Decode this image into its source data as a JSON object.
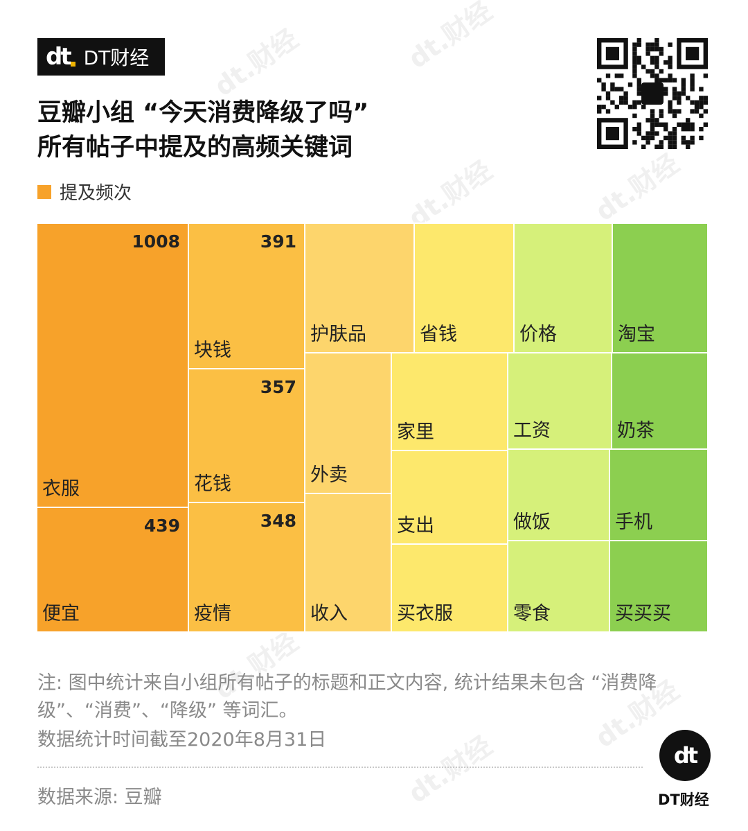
{
  "header": {
    "logo_mark": "dt",
    "brand": "DT财经",
    "title_line1": "豆瓣小组 “今天消费降级了吗”",
    "title_line2": "所有帖子中提及的高频关键词",
    "legend_label": "提及频次",
    "legend_color": "#f7a22a"
  },
  "chart_data": {
    "type": "treemap",
    "title": "豆瓣小组 “今天消费降级了吗” 所有帖子中提及的高频关键词",
    "legend": "提及频次",
    "items": [
      {
        "label": "衣服",
        "value": 1008,
        "color": "#f7a22a"
      },
      {
        "label": "便宜",
        "value": 439,
        "color": "#f7a22a"
      },
      {
        "label": "块钱",
        "value": 391,
        "color": "#fbbf44"
      },
      {
        "label": "花钱",
        "value": 357,
        "color": "#fbbf44"
      },
      {
        "label": "疫情",
        "value": 348,
        "color": "#fbbf44"
      },
      {
        "label": "护肤品",
        "value": null,
        "color": "#fdd56c"
      },
      {
        "label": "外卖",
        "value": null,
        "color": "#fdd56c"
      },
      {
        "label": "收入",
        "value": null,
        "color": "#fdd56c"
      },
      {
        "label": "省钱",
        "value": null,
        "color": "#fde86c"
      },
      {
        "label": "家里",
        "value": null,
        "color": "#fde86c"
      },
      {
        "label": "支出",
        "value": null,
        "color": "#fde86c"
      },
      {
        "label": "买衣服",
        "value": null,
        "color": "#fde86c"
      },
      {
        "label": "价格",
        "value": null,
        "color": "#d6f07a"
      },
      {
        "label": "工资",
        "value": null,
        "color": "#d6f07a"
      },
      {
        "label": "做饭",
        "value": null,
        "color": "#d6f07a"
      },
      {
        "label": "零食",
        "value": null,
        "color": "#d6f07a"
      },
      {
        "label": "淘宝",
        "value": null,
        "color": "#8ccf50"
      },
      {
        "label": "奶茶",
        "value": null,
        "color": "#8ccf50"
      },
      {
        "label": "手机",
        "value": null,
        "color": "#8ccf50"
      },
      {
        "label": "买买买",
        "value": null,
        "color": "#8ccf50"
      }
    ]
  },
  "footer": {
    "note": "注: 图中统计来自小组所有帖子的标题和正文内容, 统计结果未包含 “消费降级”、“消费”、“降级” 等词汇。",
    "date": "数据统计时间截至2020年8月31日",
    "source": "数据来源: 豆瓣",
    "logo_mark": "dt",
    "brand": "DT财经"
  },
  "watermark": "dt.财经"
}
